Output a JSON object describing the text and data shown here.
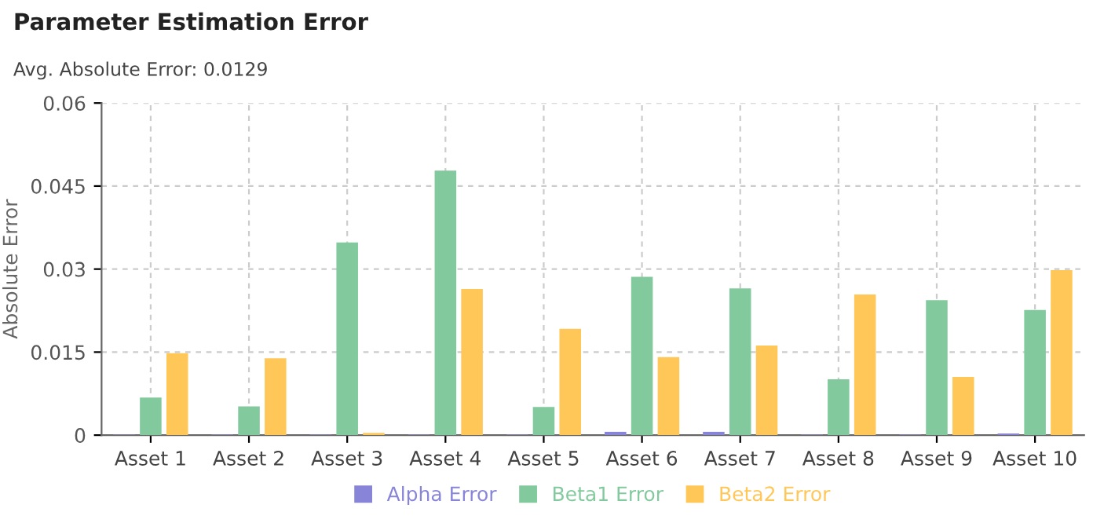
{
  "chart_data": {
    "type": "bar",
    "title": "Parameter Estimation Error",
    "subtitle": "Avg. Absolute Error: 0.0129",
    "ylabel": "Absolute Error",
    "categories": [
      "Asset 1",
      "Asset 2",
      "Asset 3",
      "Asset 4",
      "Asset 5",
      "Asset 6",
      "Asset 7",
      "Asset 8",
      "Asset 9",
      "Asset 10"
    ],
    "series": [
      {
        "name": "Alpha Error",
        "color": "#8884d8",
        "values": [
          0.0001,
          0.0001,
          0.0001,
          0.0001,
          0.0001,
          0.0006,
          0.0006,
          0.0001,
          0.0001,
          0.0003
        ]
      },
      {
        "name": "Beta1 Error",
        "color": "#82ca9d",
        "values": [
          0.0068,
          0.0052,
          0.0348,
          0.0478,
          0.0051,
          0.0286,
          0.0265,
          0.0101,
          0.0244,
          0.0226
        ]
      },
      {
        "name": "Beta2 Error",
        "color": "#ffc658",
        "values": [
          0.0148,
          0.0139,
          0.0004,
          0.0264,
          0.0192,
          0.0141,
          0.0162,
          0.0254,
          0.0105,
          0.0298
        ]
      }
    ],
    "ylim": [
      0,
      0.06
    ],
    "yticks": [
      0,
      0.015,
      0.03,
      0.045,
      0.06
    ],
    "grid": true,
    "legend": "bottom"
  }
}
